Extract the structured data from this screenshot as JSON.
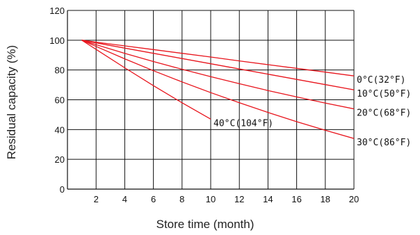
{
  "chart_data": {
    "type": "line",
    "xlabel": "Store time (month)",
    "ylabel": "Residual capacity (%)",
    "xlim": [
      0,
      20
    ],
    "ylim": [
      0,
      120
    ],
    "x_ticks": [
      "2",
      "4",
      "6",
      "8",
      "10",
      "12",
      "14",
      "16",
      "18",
      "20"
    ],
    "y_ticks": [
      "0",
      "20",
      "40",
      "60",
      "80",
      "100",
      "120"
    ],
    "grid": true,
    "line_color": "#e8141c",
    "series": [
      {
        "name": "0°C(32°F)",
        "x": [
          1,
          2,
          4,
          6,
          8,
          10,
          12,
          14,
          16,
          18,
          20
        ],
        "y": [
          100,
          98.7,
          96.2,
          93.7,
          91.2,
          88.7,
          86.1,
          83.6,
          81.1,
          78.6,
          76
        ]
      },
      {
        "name": "10°C(50°F)",
        "x": [
          1,
          2,
          4,
          6,
          8,
          10,
          12,
          14,
          16,
          18,
          20
        ],
        "y": [
          100,
          98.2,
          94.7,
          91.2,
          87.7,
          84.2,
          80.7,
          77.2,
          73.7,
          70.2,
          66.7
        ]
      },
      {
        "name": "20°C(68°F)",
        "x": [
          1,
          2,
          4,
          6,
          8,
          10,
          12,
          14,
          16,
          18,
          20
        ],
        "y": [
          100,
          97,
          91.2,
          85.7,
          80.5,
          75.5,
          70.8,
          66.2,
          61.9,
          57.8,
          53.9
        ]
      },
      {
        "name": "30°C(86°F)",
        "x": [
          1,
          2,
          4,
          6,
          8,
          10,
          12,
          14,
          16,
          18,
          20
        ],
        "y": [
          100,
          95.8,
          87.5,
          79.5,
          72,
          64.8,
          58,
          51.5,
          45.3,
          39.5,
          34
        ]
      },
      {
        "name": "40°C(104°F)",
        "x": [
          1,
          2,
          4,
          6,
          8,
          10
        ],
        "y": [
          100,
          93.8,
          81.5,
          69.5,
          58,
          47
        ]
      }
    ]
  }
}
